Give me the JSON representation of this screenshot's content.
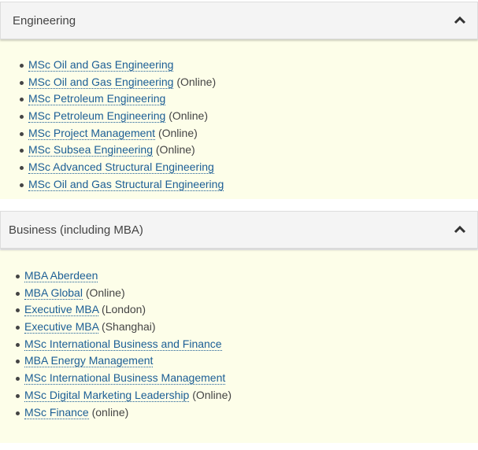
{
  "sections": [
    {
      "title": "Engineering",
      "expanded": true,
      "items": [
        {
          "link": "MSc Oil and Gas Engineering",
          "suffix": ""
        },
        {
          "link": "MSc Oil and Gas Engineering",
          "suffix": " (Online)"
        },
        {
          "link": "MSc Petroleum Engineering",
          "suffix": ""
        },
        {
          "link": "MSc Petroleum Engineering",
          "suffix": " (Online)"
        },
        {
          "link": "MSc Project Management",
          "suffix": " (Online)"
        },
        {
          "link": "MSc Subsea Engineering",
          "suffix": " (Online)"
        },
        {
          "link": "MSc Advanced Structural Engineering",
          "suffix": ""
        },
        {
          "link": "MSc Oil and Gas Structural Engineering",
          "suffix": ""
        }
      ]
    },
    {
      "title": "Business (including MBA)",
      "expanded": true,
      "items": [
        {
          "link": "MBA Aberdeen",
          "suffix": ""
        },
        {
          "link": "MBA Global",
          "suffix": " (Online)"
        },
        {
          "link": "Executive MBA",
          "suffix": " (London)"
        },
        {
          "link": "Executive MBA",
          "suffix": " (Shanghai)"
        },
        {
          "link": "MSc International Business and Finance",
          "suffix": ""
        },
        {
          "link": "MBA Energy Management",
          "suffix": ""
        },
        {
          "link": "MSc International Business Management",
          "suffix": ""
        },
        {
          "link": "MSc Digital Marketing Leadership",
          "suffix": " (Online)"
        },
        {
          "link": "MSc Finance",
          "suffix": " (online)"
        }
      ]
    }
  ],
  "icons": {
    "toggle": "chevron-up-icon"
  },
  "colors": {
    "link": "#1c5e95",
    "panel_body": "#fdfee9",
    "header_bg": "#f4f4f4"
  }
}
